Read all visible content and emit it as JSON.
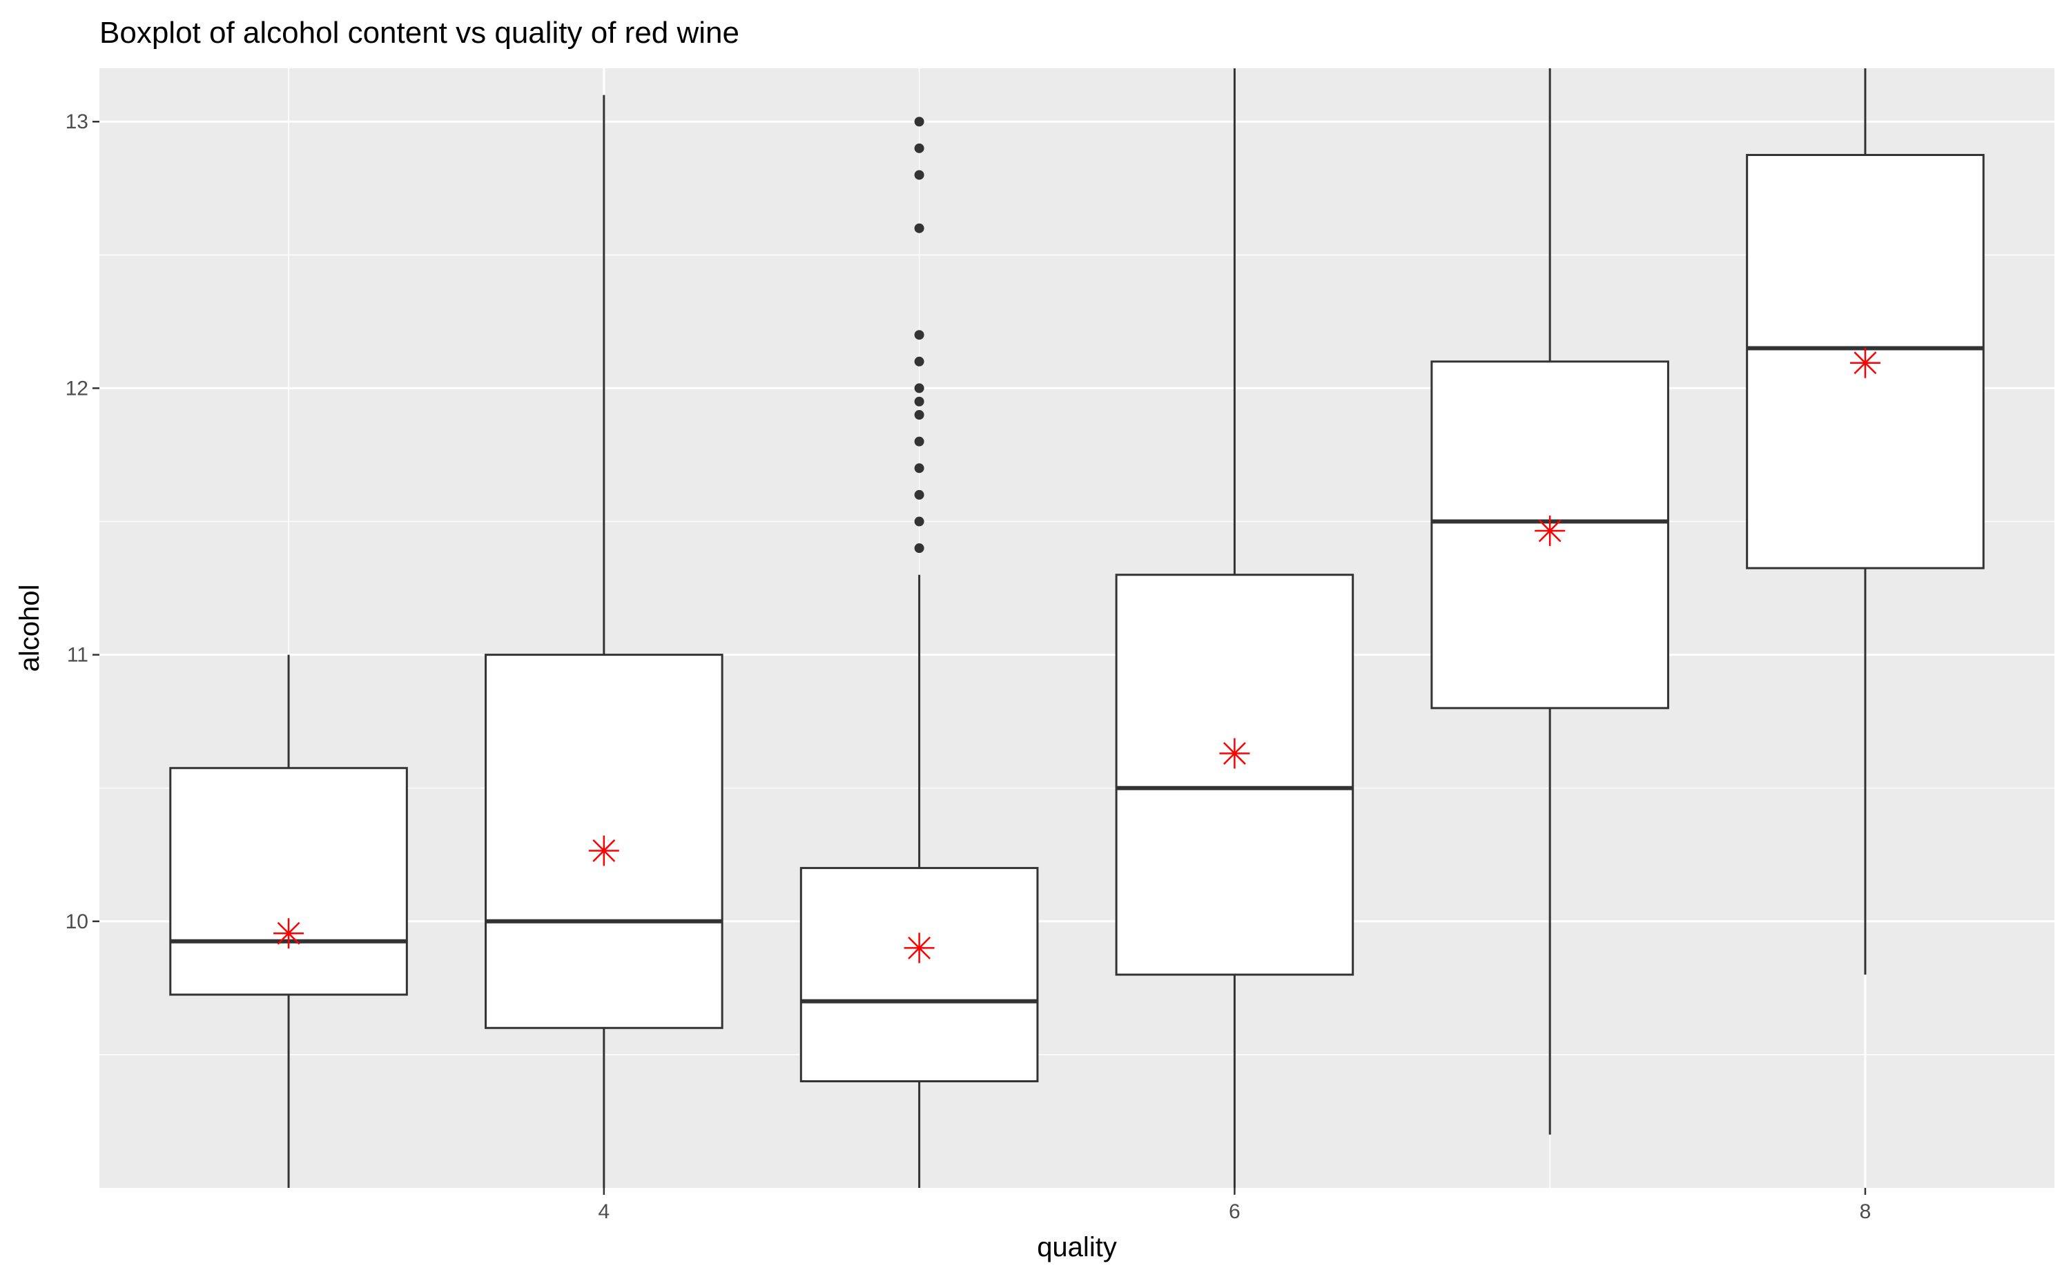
{
  "chart_data": {
    "type": "boxplot",
    "title": "Boxplot of alcohol content vs quality of red wine",
    "xlabel": "quality",
    "ylabel": "alcohol",
    "xlim": [
      2.4,
      8.6
    ],
    "ylim": [
      9.0,
      13.2
    ],
    "x_ticks": [
      4,
      6,
      8
    ],
    "y_ticks": [
      10,
      11,
      12,
      13
    ],
    "grid": true,
    "mean_marker": "asterisk",
    "colors": {
      "panel_background": "#ebebeb",
      "grid_major": "#ffffff",
      "box_fill": "#ffffff",
      "box_line": "#333333",
      "mean_marker": "#ff0000",
      "outlier": "#333333"
    },
    "boxes": [
      {
        "quality": 3,
        "lower_whisker": 9.0,
        "q1": 9.725,
        "median": 9.925,
        "q3": 10.575,
        "upper_whisker": 11.0,
        "mean": 9.955,
        "outliers": []
      },
      {
        "quality": 4,
        "lower_whisker": 9.0,
        "q1": 9.6,
        "median": 10.0,
        "q3": 11.0,
        "upper_whisker": 13.1,
        "mean": 10.265,
        "outliers": []
      },
      {
        "quality": 5,
        "lower_whisker": 9.0,
        "q1": 9.4,
        "median": 9.7,
        "q3": 10.2,
        "upper_whisker": 11.3,
        "mean": 9.9,
        "outliers": [
          11.4,
          11.5,
          11.6,
          11.7,
          11.8,
          11.9,
          11.95,
          12.0,
          12.1,
          12.2,
          12.6,
          12.8,
          12.9,
          13.0
        ]
      },
      {
        "quality": 6,
        "lower_whisker": 9.0,
        "q1": 9.8,
        "median": 10.5,
        "q3": 11.3,
        "upper_whisker": 13.2,
        "mean": 10.63,
        "outliers": []
      },
      {
        "quality": 7,
        "lower_whisker": 9.2,
        "q1": 10.8,
        "median": 11.5,
        "q3": 12.1,
        "upper_whisker": 13.2,
        "mean": 11.465,
        "outliers": []
      },
      {
        "quality": 8,
        "lower_whisker": 9.8,
        "q1": 11.325,
        "median": 12.15,
        "q3": 12.875,
        "upper_whisker": 13.2,
        "mean": 12.095,
        "outliers": []
      }
    ]
  }
}
